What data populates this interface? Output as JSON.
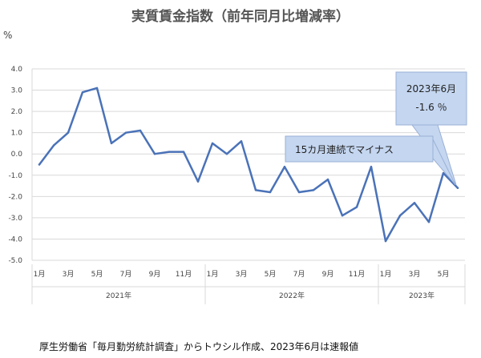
{
  "chart_data": {
    "type": "line",
    "title": "実質賃金指数（前年同月比増減率）",
    "ylabel": "%",
    "xlabel": "",
    "ylim": [
      -5.0,
      4.0
    ],
    "grid": true,
    "y_ticks": [
      "4.0",
      "3.0",
      "2.0",
      "1.0",
      "0.0",
      "-1.0",
      "-2.0",
      "-3.0",
      "-4.0",
      "-5.0"
    ],
    "x_month_labels": [
      "1月",
      "",
      "3月",
      "",
      "5月",
      "",
      "7月",
      "",
      "9月",
      "",
      "11月",
      "",
      "1月",
      "",
      "3月",
      "",
      "5月",
      "",
      "7月",
      "",
      "9月",
      "",
      "11月",
      "",
      "1月",
      "",
      "3月",
      "",
      "5月",
      ""
    ],
    "x_year_labels": [
      "2021年",
      "2022年",
      "2023年"
    ],
    "series": [
      {
        "color": "#4a72b8",
        "values": [
          -0.5,
          0.4,
          1.0,
          2.9,
          3.1,
          0.5,
          1.0,
          1.1,
          0.0,
          0.1,
          0.1,
          -1.3,
          0.5,
          0.0,
          0.6,
          -1.7,
          -1.8,
          -0.6,
          -1.8,
          -1.7,
          -1.2,
          -2.9,
          -2.5,
          -0.6,
          -4.1,
          -2.9,
          -2.3,
          -3.2,
          -0.9,
          -1.6
        ]
      }
    ],
    "annotations": [
      {
        "lines": [
          "2023年6月",
          "-1.6 ％"
        ]
      },
      {
        "lines": [
          "15カ月連続でマイナス"
        ]
      }
    ]
  },
  "source_note": "厚生労働省「毎月勤労統計調査」からトウシル作成、2023年6月は速報値"
}
